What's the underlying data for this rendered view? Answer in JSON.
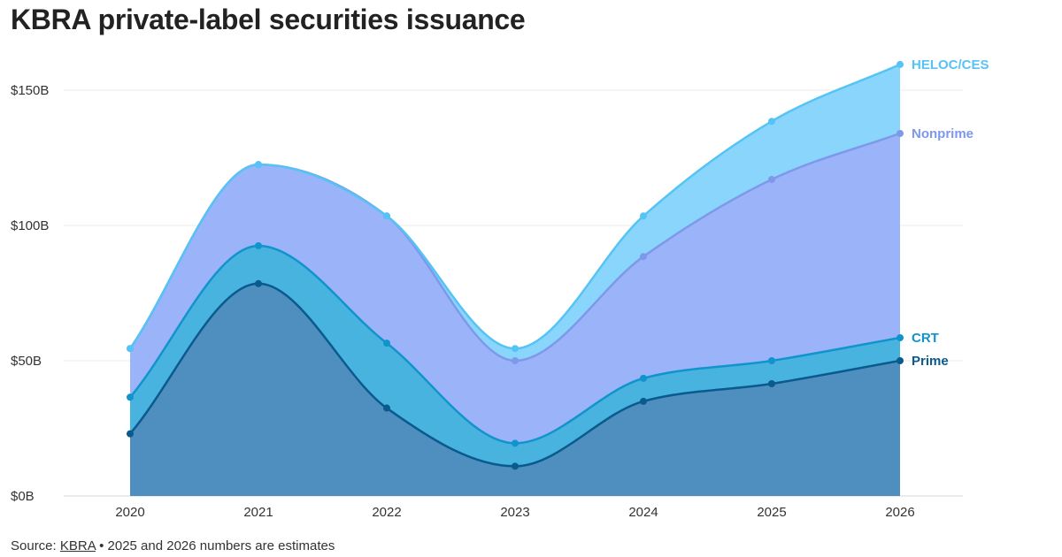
{
  "title": "KBRA private-label securities issuance",
  "footer": {
    "prefix": "Source:",
    "link_text": "KBRA",
    "bullet": "•",
    "note": "2025 and 2026 numbers are estimates"
  },
  "chart_data": {
    "type": "area",
    "stacked": true,
    "smooth": true,
    "categories": [
      "2020",
      "2021",
      "2022",
      "2023",
      "2024",
      "2025",
      "2026"
    ],
    "ylim": [
      0,
      160
    ],
    "y_ticks": [
      0,
      50,
      100,
      150
    ],
    "y_tick_labels": [
      "$0B",
      "$50B",
      "$100B",
      "$150B"
    ],
    "grid": "horizontal",
    "series": [
      {
        "name": "Prime",
        "values": [
          23,
          78.5,
          32.5,
          11,
          35,
          41.5,
          50
        ],
        "color": "#0b5a8e",
        "fill": "#4e8fbf"
      },
      {
        "name": "CRT",
        "values": [
          13.5,
          14,
          24,
          8.5,
          8.5,
          8.5,
          8.5
        ],
        "color": "#1194cc",
        "fill": "#49b3e0"
      },
      {
        "name": "Nonprime",
        "values": [
          18,
          30,
          47,
          30.5,
          45,
          67,
          75.5
        ],
        "color": "#7e98ea",
        "fill": "#9bb4f9"
      },
      {
        "name": "HELOC/CES",
        "values": [
          0,
          0,
          0,
          4.5,
          15,
          21.5,
          25.5
        ],
        "color": "#56c3f5",
        "fill": "#8ad5fc"
      }
    ],
    "totals": [
      54.5,
      122.5,
      103.5,
      54.5,
      103.5,
      138.5,
      159.5
    ],
    "legend": "inline-right"
  }
}
